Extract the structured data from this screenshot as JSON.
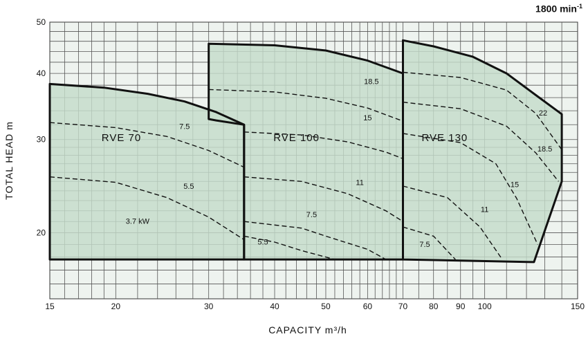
{
  "chart_data": {
    "type": "area",
    "speed_label": "1800 min",
    "speed_label_sup": "-1",
    "xlabel": "CAPACITY  m³/h",
    "ylabel": "TOTAL  HEAD   m",
    "x_scale": "log",
    "y_scale": "log",
    "xlim": [
      15,
      150
    ],
    "ylim": [
      15,
      50
    ],
    "grid": true,
    "x_ticks": [
      {
        "value": 15,
        "label": "15"
      },
      {
        "value": 20,
        "label": "20"
      },
      {
        "value": 30,
        "label": "30"
      },
      {
        "value": 40,
        "label": "40"
      },
      {
        "value": 50,
        "label": "50"
      },
      {
        "value": 60,
        "label": "60"
      },
      {
        "value": 70,
        "label": "70"
      },
      {
        "value": 80,
        "label": "80"
      },
      {
        "value": 90,
        "label": "90"
      },
      {
        "value": 100,
        "label": "100"
      },
      {
        "value": 150,
        "label": "150"
      }
    ],
    "y_ticks": [
      {
        "value": 20,
        "label": "20"
      },
      {
        "value": 30,
        "label": "30"
      },
      {
        "value": 40,
        "label": "40"
      },
      {
        "value": 50,
        "label": "50"
      }
    ],
    "grid_x": [
      16,
      17,
      18,
      19,
      20,
      22,
      24,
      26,
      28,
      30,
      32,
      34,
      36,
      38,
      40,
      42,
      44,
      46,
      48,
      50,
      52,
      54,
      56,
      58,
      60,
      62,
      64,
      66,
      68,
      70,
      75,
      80,
      85,
      90,
      95,
      100,
      110,
      120,
      130,
      140
    ],
    "grid_y": [
      16,
      17,
      18,
      19,
      20,
      21,
      22,
      23,
      24,
      25,
      26,
      27,
      28,
      29,
      30,
      32,
      34,
      36,
      38,
      40,
      42,
      44,
      46,
      48
    ],
    "fill_color": "#c4dccb",
    "grid_color": "#555555",
    "background_color": "#eef3ef",
    "regions": [
      {
        "name": "RVE 70",
        "label_at": [
          20.5,
          29.8
        ],
        "outline": [
          [
            15,
            17.8
          ],
          [
            35,
            17.8
          ],
          [
            35,
            32
          ],
          [
            31,
            33.8
          ],
          [
            27,
            35.4
          ],
          [
            23,
            36.6
          ],
          [
            19,
            37.6
          ],
          [
            15,
            38.2
          ]
        ]
      },
      {
        "name": "RVE 100",
        "label_at": [
          44,
          29.8
        ],
        "outline": [
          [
            30,
            32.8
          ],
          [
            30,
            45.5
          ],
          [
            40,
            45.2
          ],
          [
            50,
            44.2
          ],
          [
            60,
            42.3
          ],
          [
            70,
            40
          ],
          [
            70,
            17.8
          ],
          [
            35,
            17.8
          ],
          [
            35,
            32
          ],
          [
            31,
            32.6
          ]
        ]
      },
      {
        "name": "RVE 130",
        "label_at": [
          84,
          29.8
        ],
        "outline": [
          [
            70,
            17.8
          ],
          [
            70,
            46.2
          ],
          [
            80,
            45
          ],
          [
            95,
            43
          ],
          [
            110,
            40
          ],
          [
            125,
            36.4
          ],
          [
            140,
            33.5
          ],
          [
            140,
            25
          ],
          [
            124,
            17.6
          ]
        ]
      }
    ],
    "series": [
      {
        "name": "7.5",
        "label_at": [
          27,
          31.4
        ],
        "points": [
          [
            15,
            32.3
          ],
          [
            20,
            31.6
          ],
          [
            25,
            30.4
          ],
          [
            30,
            28.6
          ],
          [
            35,
            26.6
          ]
        ]
      },
      {
        "name": "5.5",
        "label_at": [
          27.5,
          24.2
        ],
        "points": [
          [
            15,
            25.5
          ],
          [
            20,
            24.9
          ],
          [
            25,
            23.3
          ],
          [
            30,
            21.4
          ],
          [
            35,
            19.4
          ]
        ]
      },
      {
        "name": "3.7 kW",
        "label_at": [
          22,
          20.8
        ],
        "points": []
      },
      {
        "name": "18.5",
        "label_at": [
          61,
          38.2
        ],
        "points": [
          [
            30,
            37.3
          ],
          [
            40,
            36.9
          ],
          [
            50,
            35.9
          ],
          [
            60,
            34.4
          ],
          [
            70,
            32.5
          ]
        ]
      },
      {
        "name": "15",
        "label_at": [
          60,
          32.6
        ],
        "points": [
          [
            35,
            31
          ],
          [
            45,
            30.6
          ],
          [
            55,
            29.7
          ],
          [
            65,
            28.4
          ],
          [
            70,
            27.6
          ]
        ]
      },
      {
        "name": "11",
        "label_at": [
          58,
          24.6
        ],
        "points": [
          [
            35,
            25.5
          ],
          [
            45,
            25
          ],
          [
            55,
            23.7
          ],
          [
            65,
            22
          ],
          [
            70,
            21
          ]
        ]
      },
      {
        "name": "7.5",
        "label_at": [
          47,
          21.4
        ],
        "points": [
          [
            35,
            21
          ],
          [
            45,
            20.4
          ],
          [
            50,
            19.7
          ],
          [
            60,
            18.6
          ],
          [
            65,
            17.8
          ]
        ]
      },
      {
        "name": "5.5",
        "label_at": [
          38,
          19
        ],
        "points": [
          [
            35,
            19.7
          ],
          [
            40,
            19.2
          ],
          [
            45,
            18.5
          ],
          [
            52,
            17.8
          ]
        ]
      },
      {
        "name": "22",
        "label_at": [
          129,
          33.3
        ],
        "points": [
          [
            70,
            40.2
          ],
          [
            90,
            39.3
          ],
          [
            110,
            37.2
          ],
          [
            125,
            33.6
          ],
          [
            140,
            28.7
          ]
        ]
      },
      {
        "name": "18.5",
        "label_at": [
          130,
          28.5
        ],
        "points": [
          [
            70,
            35.3
          ],
          [
            90,
            34.3
          ],
          [
            110,
            31.8
          ],
          [
            125,
            28.3
          ],
          [
            138,
            25
          ]
        ]
      },
      {
        "name": "15",
        "label_at": [
          114,
          24.4
        ],
        "points": [
          [
            70,
            30.8
          ],
          [
            90,
            29.6
          ],
          [
            105,
            27
          ],
          [
            115,
            23.2
          ],
          [
            126,
            19
          ]
        ]
      },
      {
        "name": "11",
        "label_at": [
          100,
          21.9
        ],
        "points": [
          [
            70,
            24.5
          ],
          [
            85,
            23.3
          ],
          [
            98,
            20.5
          ],
          [
            108,
            17.8
          ]
        ]
      },
      {
        "name": "7.5",
        "label_at": [
          77,
          18.8
        ],
        "points": [
          [
            70,
            20.5
          ],
          [
            80,
            19.7
          ],
          [
            88,
            17.8
          ]
        ]
      }
    ]
  }
}
